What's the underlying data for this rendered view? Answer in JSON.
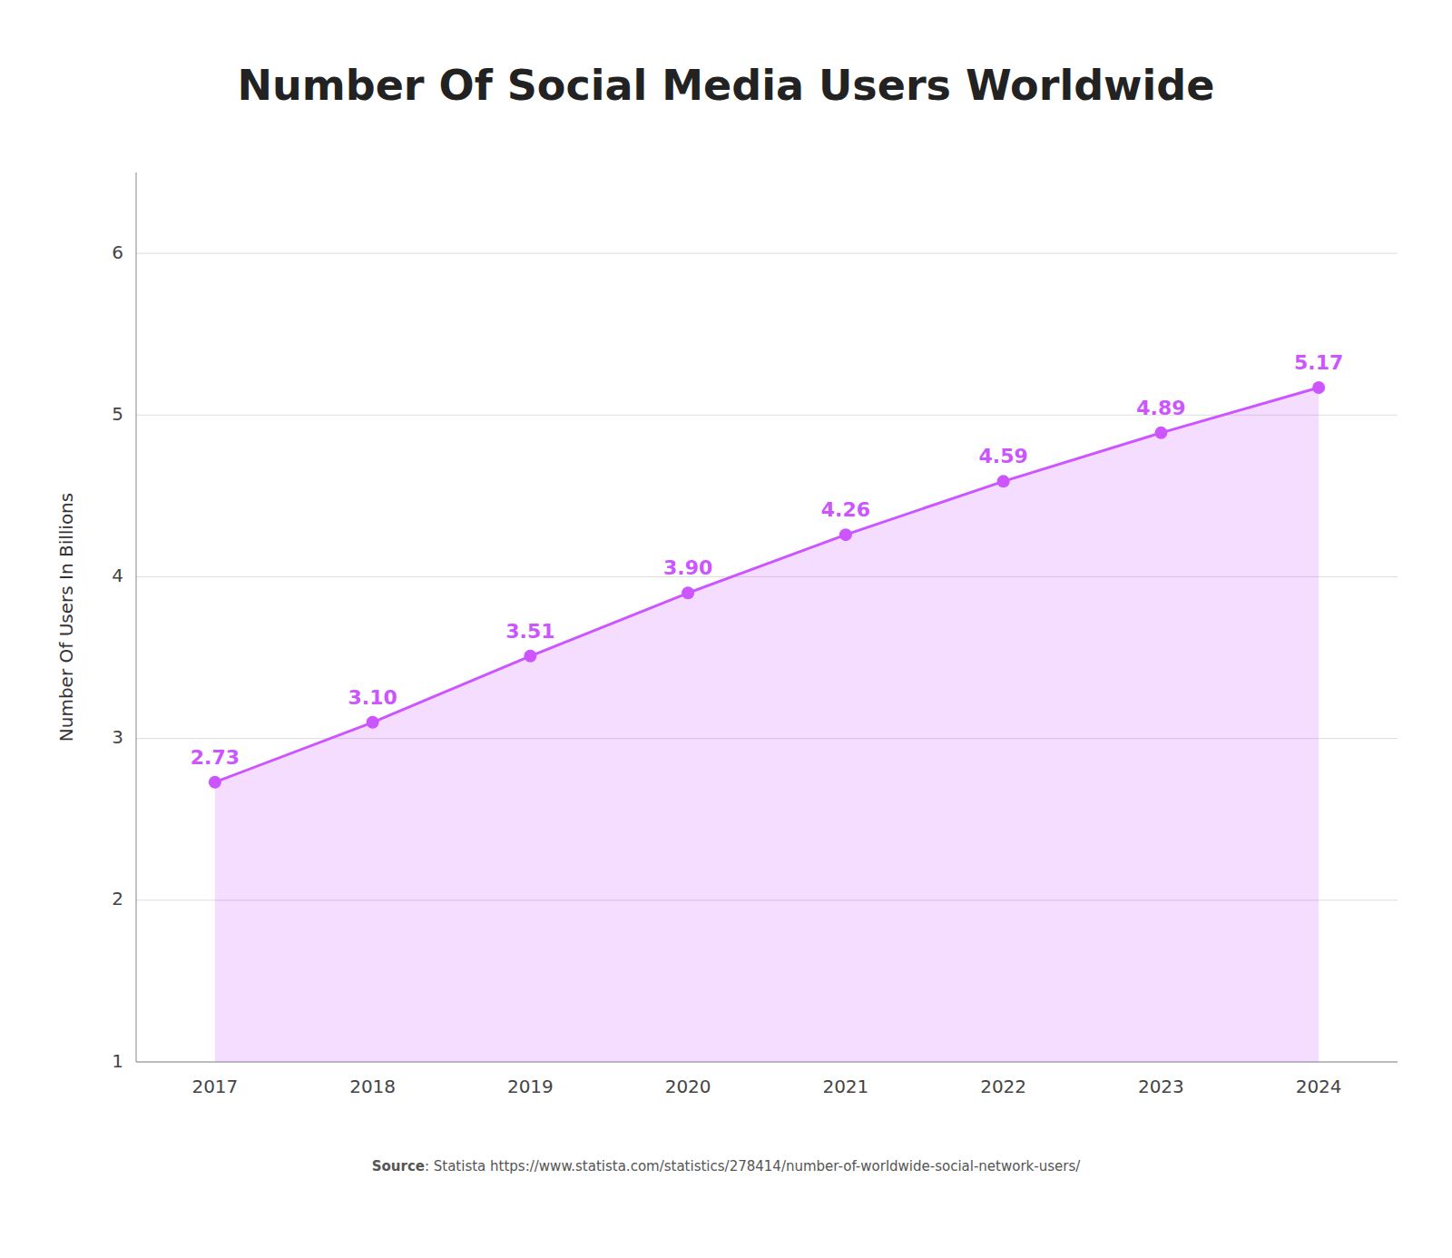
{
  "chart_data": {
    "type": "area",
    "title": "Number Of Social Media Users Worldwide",
    "y_label": "Number Of Users In Billions",
    "categories": [
      "2017",
      "2018",
      "2019",
      "2020",
      "2021",
      "2022",
      "2023",
      "2024"
    ],
    "values": [
      2.73,
      3.1,
      3.51,
      3.9,
      4.26,
      4.59,
      4.89,
      5.17
    ],
    "value_labels": [
      "2.73",
      "3.10",
      "3.51",
      "3.90",
      "4.26",
      "4.59",
      "4.89",
      "5.17"
    ],
    "data_labels": true,
    "color": "#cc55ff",
    "marker": "circle",
    "ylim": [
      1.0,
      6.5
    ],
    "yticks": [
      1,
      2,
      3,
      4,
      5,
      6
    ],
    "grid": true,
    "annotations": [
      "Source",
      ": Statista https://www.statista.com/statistics/278414/number-of-worldwide-social-network-users/"
    ]
  }
}
